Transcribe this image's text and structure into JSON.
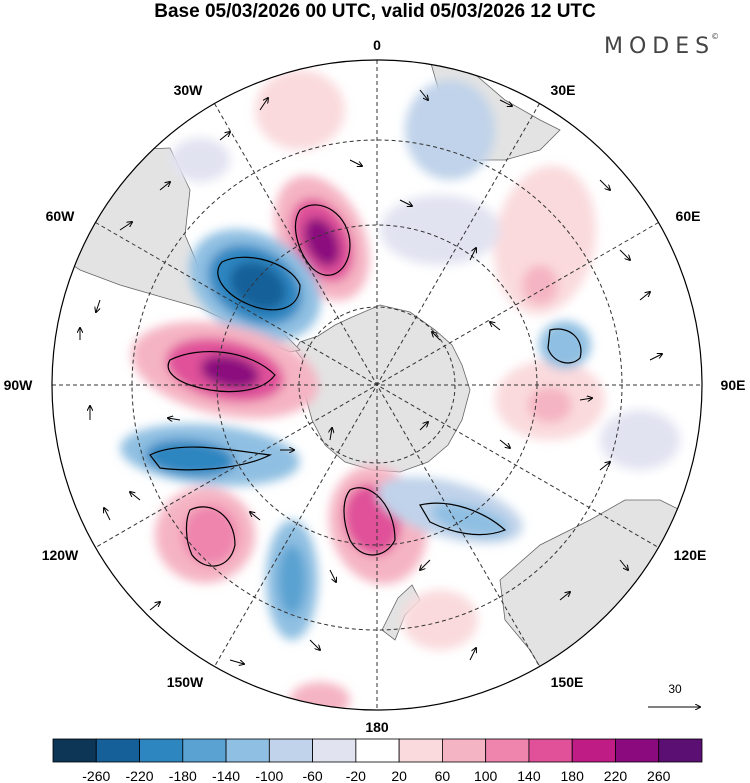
{
  "title": "Base 05/03/2026 00 UTC, valid 05/03/2026 12 UTC",
  "brand": {
    "name": "MODES",
    "mark": "©"
  },
  "map": {
    "projection": "south-polar-stereographic",
    "longitude_labels": [
      "0",
      "30E",
      "60E",
      "90E",
      "120E",
      "150E",
      "180",
      "150W",
      "120W",
      "90W",
      "60W",
      "30W"
    ],
    "reference_vector": {
      "label": "30"
    }
  },
  "colorbar": {
    "labels": [
      "-260",
      "-220",
      "-180",
      "-140",
      "-100",
      "-60",
      "-20",
      "20",
      "60",
      "100",
      "140",
      "180",
      "220",
      "260"
    ],
    "colors": [
      "#0c3556",
      "#16609a",
      "#2e86c1",
      "#5aa2d2",
      "#8fbfe2",
      "#c0d3ea",
      "#e2e3f1",
      "#ffffff",
      "#fadadd",
      "#f5b4c3",
      "#ef85ad",
      "#e0519a",
      "#c01c86",
      "#8b0a7e",
      "#5c0f72"
    ]
  },
  "colors": {
    "land": "#e3e3e3",
    "coast": "#666666",
    "grid": "#333333"
  }
}
